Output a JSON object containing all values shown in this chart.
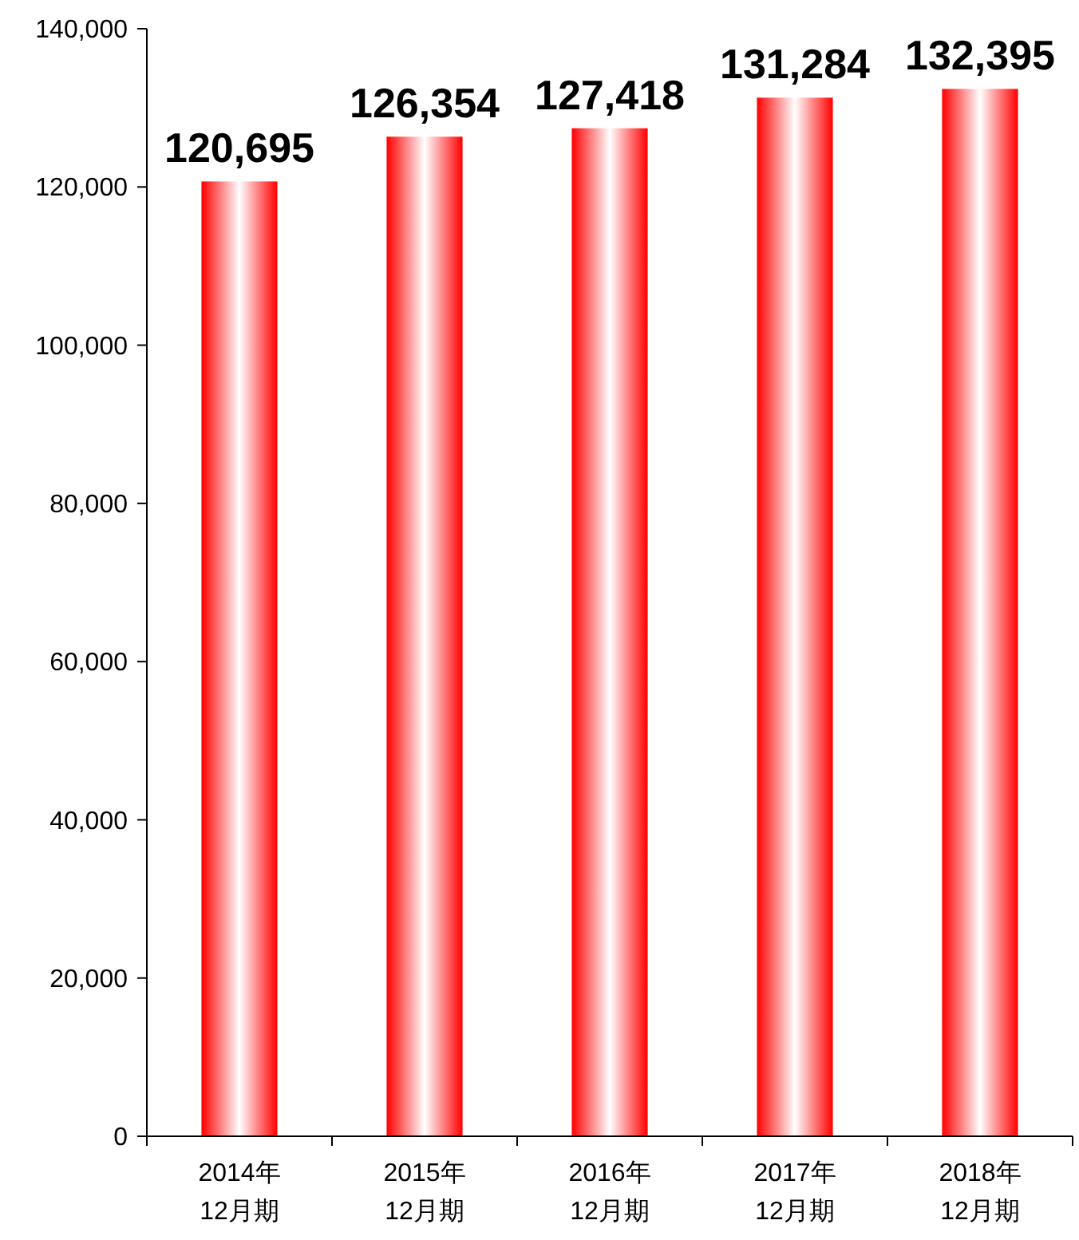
{
  "chart_data": {
    "type": "bar",
    "categories": [
      "2014年\n12月期",
      "2015年\n12月期",
      "2016年\n12月期",
      "2017年\n12月期",
      "2018年\n12月期"
    ],
    "values": [
      120695,
      126354,
      127418,
      131284,
      132395
    ],
    "color": "#ff0000",
    "ylim": [
      0,
      140000
    ],
    "yticks": [
      {
        "value": 0,
        "label": "0"
      },
      {
        "value": 20000,
        "label": "20,000"
      },
      {
        "value": 40000,
        "label": "40,000"
      },
      {
        "value": 60000,
        "label": "60,000"
      },
      {
        "value": 80000,
        "label": "80,000"
      },
      {
        "value": 100000,
        "label": "100,000"
      },
      {
        "value": 120000,
        "label": "120,000"
      },
      {
        "value": 140000,
        "label": "140,000"
      }
    ],
    "value_labels": [
      "120,695",
      "126,354",
      "127,418",
      "131,284",
      "132,395"
    ],
    "grid": false
  }
}
